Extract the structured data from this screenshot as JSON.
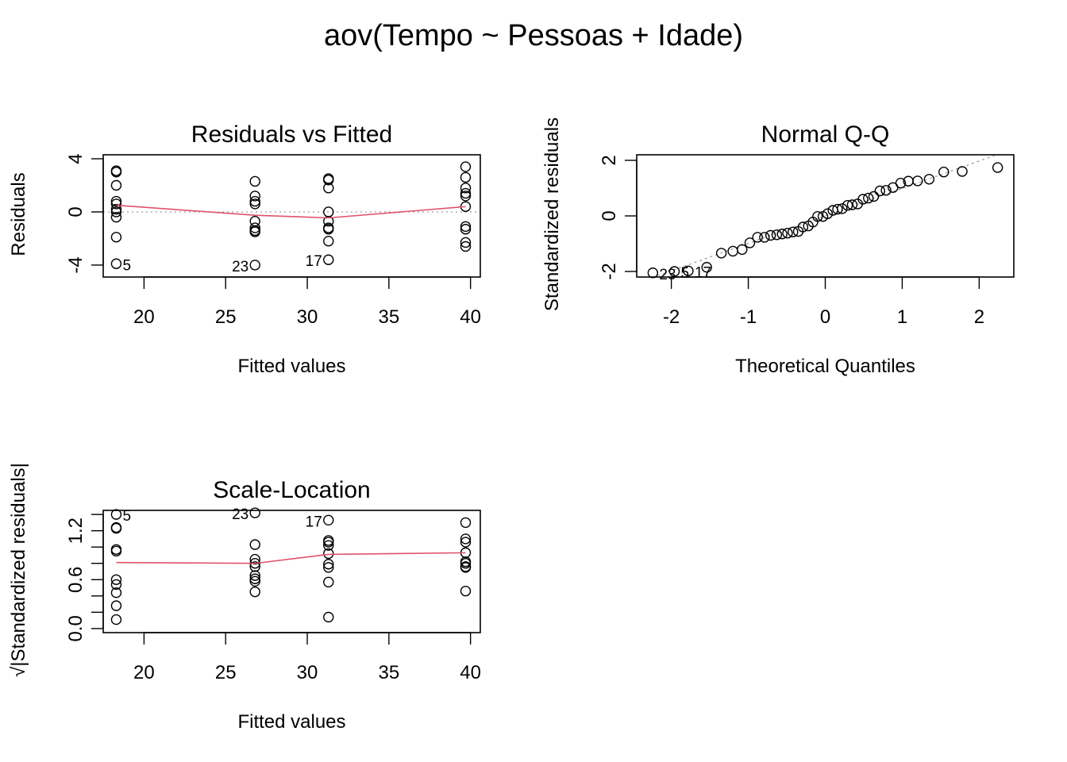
{
  "main_title": "aov(Tempo ~ Pessoas + Idade)",
  "colors": {
    "smooth_line": "#DF536B",
    "reference_line": "#9E9E9E",
    "points": "#000000"
  },
  "chart_data": [
    {
      "type": "scatter",
      "title": "Residuals vs Fitted",
      "xlabel": "Fitted values",
      "ylabel": "Residuals",
      "xlim": [
        17.5,
        40.6
      ],
      "ylim": [
        -4.9,
        4.3
      ],
      "xticks": [
        20,
        25,
        30,
        35,
        40
      ],
      "yticks": [
        -4,
        0,
        4
      ],
      "xtick_labels": [
        "20",
        "25",
        "30",
        "35",
        "40"
      ],
      "ytick_labels": [
        "-4",
        "0",
        "4"
      ],
      "grid": false,
      "reference_hline": 0,
      "points": [
        {
          "x": 18.3,
          "y": 3.1
        },
        {
          "x": 18.3,
          "y": 3.0
        },
        {
          "x": 18.3,
          "y": 2.0
        },
        {
          "x": 18.3,
          "y": 0.8
        },
        {
          "x": 18.3,
          "y": 0.6
        },
        {
          "x": 18.3,
          "y": 0.2
        },
        {
          "x": 18.3,
          "y": 0.0
        },
        {
          "x": 18.3,
          "y": -0.4
        },
        {
          "x": 18.3,
          "y": -1.9
        },
        {
          "x": 18.3,
          "y": -3.9
        },
        {
          "x": 26.8,
          "y": 2.3
        },
        {
          "x": 26.8,
          "y": 1.2
        },
        {
          "x": 26.8,
          "y": 0.8
        },
        {
          "x": 26.8,
          "y": 0.6
        },
        {
          "x": 26.8,
          "y": -0.7
        },
        {
          "x": 26.8,
          "y": -1.2
        },
        {
          "x": 26.8,
          "y": -1.4
        },
        {
          "x": 26.8,
          "y": -1.5
        },
        {
          "x": 26.8,
          "y": -4.0
        },
        {
          "x": 31.3,
          "y": 2.5
        },
        {
          "x": 31.3,
          "y": 2.4
        },
        {
          "x": 31.3,
          "y": 1.8
        },
        {
          "x": 31.3,
          "y": 0.0
        },
        {
          "x": 31.3,
          "y": -0.7
        },
        {
          "x": 31.3,
          "y": -1.2
        },
        {
          "x": 31.3,
          "y": -1.3
        },
        {
          "x": 31.3,
          "y": -2.2
        },
        {
          "x": 31.3,
          "y": -3.6
        },
        {
          "x": 39.7,
          "y": 3.4
        },
        {
          "x": 39.7,
          "y": 2.6
        },
        {
          "x": 39.7,
          "y": 1.8
        },
        {
          "x": 39.7,
          "y": 1.4
        },
        {
          "x": 39.7,
          "y": 1.2
        },
        {
          "x": 39.7,
          "y": 0.4
        },
        {
          "x": 39.7,
          "y": -1.1
        },
        {
          "x": 39.7,
          "y": -1.3
        },
        {
          "x": 39.7,
          "y": -2.3
        },
        {
          "x": 39.7,
          "y": -2.6
        }
      ],
      "smooth_line": [
        {
          "x": 18.3,
          "y": 0.5
        },
        {
          "x": 26.8,
          "y": -0.25
        },
        {
          "x": 31.3,
          "y": -0.45
        },
        {
          "x": 39.7,
          "y": 0.4
        }
      ],
      "annotations": [
        {
          "text": "5",
          "x": 18.3,
          "y": -3.9,
          "pos": "right"
        },
        {
          "text": "23",
          "x": 26.8,
          "y": -4.0,
          "pos": "left"
        },
        {
          "text": "17",
          "x": 31.3,
          "y": -3.6,
          "pos": "left"
        }
      ]
    },
    {
      "type": "scatter",
      "title": "Normal Q-Q",
      "xlabel": "Theoretical Quantiles",
      "ylabel": "Standardized residuals",
      "xlim": [
        -2.45,
        2.45
      ],
      "ylim": [
        -2.2,
        2.2
      ],
      "xticks": [
        -2,
        -1,
        0,
        1,
        2
      ],
      "yticks": [
        -2,
        0,
        2
      ],
      "xtick_labels": [
        "-2",
        "-1",
        "0",
        "1",
        "2"
      ],
      "ytick_labels": [
        "-2",
        "0",
        "2"
      ],
      "grid": false,
      "reference_line": {
        "x": [
          -2.45,
          2.45
        ],
        "y": [
          -2.42,
          2.42
        ],
        "style": "dotted"
      },
      "points": [
        {
          "x": -2.24,
          "y": -2.05
        },
        {
          "x": -1.96,
          "y": -2.0
        },
        {
          "x": -1.78,
          "y": -1.98
        },
        {
          "x": -1.54,
          "y": -1.85
        },
        {
          "x": -1.35,
          "y": -1.34
        },
        {
          "x": -1.2,
          "y": -1.27
        },
        {
          "x": -1.08,
          "y": -1.21
        },
        {
          "x": -0.98,
          "y": -0.97
        },
        {
          "x": -0.88,
          "y": -0.77
        },
        {
          "x": -0.79,
          "y": -0.77
        },
        {
          "x": -0.71,
          "y": -0.7
        },
        {
          "x": -0.63,
          "y": -0.68
        },
        {
          "x": -0.56,
          "y": -0.65
        },
        {
          "x": -0.49,
          "y": -0.62
        },
        {
          "x": -0.42,
          "y": -0.58
        },
        {
          "x": -0.35,
          "y": -0.56
        },
        {
          "x": -0.29,
          "y": -0.4
        },
        {
          "x": -0.22,
          "y": -0.36
        },
        {
          "x": -0.16,
          "y": -0.22
        },
        {
          "x": -0.1,
          "y": -0.02
        },
        {
          "x": -0.03,
          "y": -0.02
        },
        {
          "x": 0.03,
          "y": 0.08
        },
        {
          "x": 0.1,
          "y": 0.2
        },
        {
          "x": 0.16,
          "y": 0.24
        },
        {
          "x": 0.22,
          "y": 0.26
        },
        {
          "x": 0.29,
          "y": 0.38
        },
        {
          "x": 0.35,
          "y": 0.4
        },
        {
          "x": 0.42,
          "y": 0.43
        },
        {
          "x": 0.49,
          "y": 0.6
        },
        {
          "x": 0.56,
          "y": 0.64
        },
        {
          "x": 0.63,
          "y": 0.7
        },
        {
          "x": 0.71,
          "y": 0.9
        },
        {
          "x": 0.79,
          "y": 0.92
        },
        {
          "x": 0.88,
          "y": 1.02
        },
        {
          "x": 0.98,
          "y": 1.18
        },
        {
          "x": 1.08,
          "y": 1.25
        },
        {
          "x": 1.2,
          "y": 1.26
        },
        {
          "x": 1.35,
          "y": 1.32
        },
        {
          "x": 1.54,
          "y": 1.58
        },
        {
          "x": 1.78,
          "y": 1.6
        },
        {
          "x": 2.24,
          "y": 1.74
        }
      ],
      "annotations": [
        {
          "text": "23",
          "x": -2.24,
          "y": -2.05,
          "pos": "right"
        },
        {
          "text": "5",
          "x": -1.96,
          "y": -2.0,
          "pos": "right"
        },
        {
          "text": "17",
          "x": -1.78,
          "y": -1.98,
          "pos": "right"
        }
      ]
    },
    {
      "type": "scatter",
      "title": "Scale-Location",
      "xlabel": "Fitted values",
      "ylabel": "√|Standardized residuals|",
      "xlim": [
        17.5,
        40.6
      ],
      "ylim": [
        -0.05,
        1.45
      ],
      "xticks": [
        20,
        25,
        30,
        35,
        40
      ],
      "yticks": [
        0.0,
        0.2,
        0.4,
        0.6,
        0.8,
        1.0,
        1.2,
        1.4
      ],
      "xtick_labels": [
        "20",
        "25",
        "30",
        "35",
        "40"
      ],
      "ytick_labels": [
        "0.0",
        "",
        "",
        "0.6",
        "",
        "",
        "1.2",
        ""
      ],
      "grid": false,
      "points": [
        {
          "x": 18.3,
          "y": 1.4
        },
        {
          "x": 18.3,
          "y": 1.24
        },
        {
          "x": 18.3,
          "y": 1.23
        },
        {
          "x": 18.3,
          "y": 0.97
        },
        {
          "x": 18.3,
          "y": 0.95
        },
        {
          "x": 18.3,
          "y": 0.6
        },
        {
          "x": 18.3,
          "y": 0.54
        },
        {
          "x": 18.3,
          "y": 0.44
        },
        {
          "x": 18.3,
          "y": 0.28
        },
        {
          "x": 18.3,
          "y": 0.11
        },
        {
          "x": 26.8,
          "y": 1.42
        },
        {
          "x": 26.8,
          "y": 1.03
        },
        {
          "x": 26.8,
          "y": 0.85
        },
        {
          "x": 26.8,
          "y": 0.8
        },
        {
          "x": 26.8,
          "y": 0.76
        },
        {
          "x": 26.8,
          "y": 0.65
        },
        {
          "x": 26.8,
          "y": 0.61
        },
        {
          "x": 26.8,
          "y": 0.58
        },
        {
          "x": 26.8,
          "y": 0.45
        },
        {
          "x": 31.3,
          "y": 1.33
        },
        {
          "x": 31.3,
          "y": 1.08
        },
        {
          "x": 31.3,
          "y": 1.06
        },
        {
          "x": 31.3,
          "y": 1.02
        },
        {
          "x": 31.3,
          "y": 0.92
        },
        {
          "x": 31.3,
          "y": 0.79
        },
        {
          "x": 31.3,
          "y": 0.75
        },
        {
          "x": 31.3,
          "y": 0.57
        },
        {
          "x": 31.3,
          "y": 0.14
        },
        {
          "x": 39.7,
          "y": 1.3
        },
        {
          "x": 39.7,
          "y": 1.1
        },
        {
          "x": 39.7,
          "y": 1.06
        },
        {
          "x": 39.7,
          "y": 0.93
        },
        {
          "x": 39.7,
          "y": 0.82
        },
        {
          "x": 39.7,
          "y": 0.8
        },
        {
          "x": 39.7,
          "y": 0.76
        },
        {
          "x": 39.7,
          "y": 0.75
        },
        {
          "x": 39.7,
          "y": 0.46
        }
      ],
      "smooth_line": [
        {
          "x": 18.3,
          "y": 0.81
        },
        {
          "x": 26.8,
          "y": 0.8
        },
        {
          "x": 31.3,
          "y": 0.91
        },
        {
          "x": 39.7,
          "y": 0.93
        }
      ],
      "annotations": [
        {
          "text": "5",
          "x": 18.3,
          "y": 1.4,
          "pos": "right"
        },
        {
          "text": "23",
          "x": 26.8,
          "y": 1.42,
          "pos": "left"
        },
        {
          "text": "17",
          "x": 31.3,
          "y": 1.33,
          "pos": "left"
        }
      ]
    }
  ]
}
